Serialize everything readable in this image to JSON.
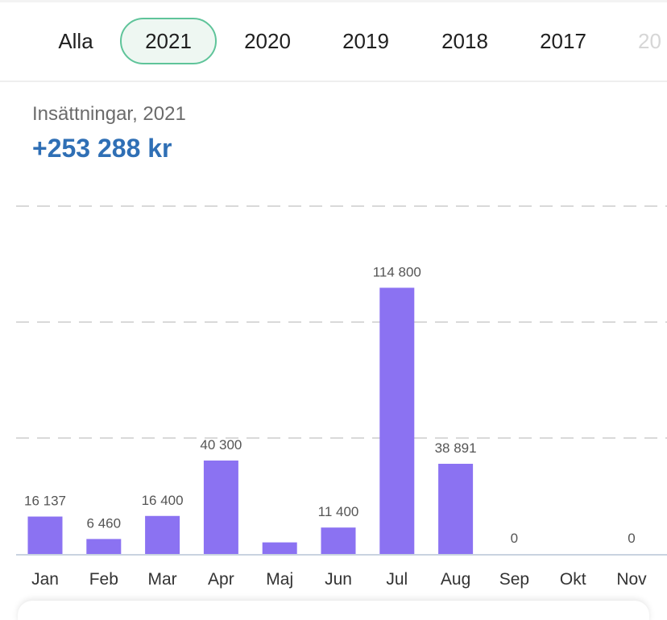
{
  "tabs": [
    {
      "label": "Alla"
    },
    {
      "label": "2021",
      "selected": true
    },
    {
      "label": "2020"
    },
    {
      "label": "2019"
    },
    {
      "label": "2018"
    },
    {
      "label": "2017"
    },
    {
      "label": "20"
    }
  ],
  "summary": {
    "label": "Insättningar, 2021",
    "value": "+253 288 kr"
  },
  "colors": {
    "bar": "#8b72f2",
    "selected_tab_border": "#5fc49a",
    "value_text": "#2f6fb5"
  },
  "chart_data": {
    "type": "bar",
    "categories": [
      "Jan",
      "Feb",
      "Mar",
      "Apr",
      "Maj",
      "Jun",
      "Jul",
      "Aug",
      "Sep",
      "Okt",
      "Nov"
    ],
    "values": [
      16137,
      6460,
      16400,
      40300,
      5000,
      11400,
      114800,
      38891,
      0,
      0,
      0
    ],
    "data_labels": [
      "16 137",
      "6 460",
      "16 400",
      "40 300",
      "",
      "11 400",
      "114 800",
      "38 891",
      "0",
      "",
      "0"
    ],
    "ylim": [
      0,
      150000
    ],
    "grid": true,
    "grid_style": "dashed"
  }
}
